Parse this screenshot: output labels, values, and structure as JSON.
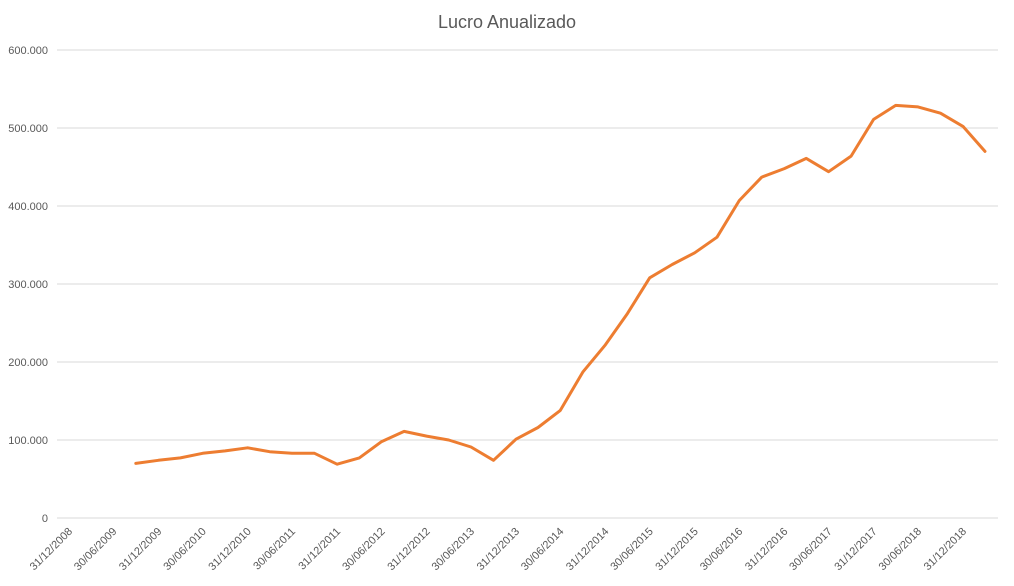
{
  "chart_data": {
    "type": "line",
    "title": "Lucro Anualizado",
    "xlabel": "",
    "ylabel": "",
    "ylim": [
      0,
      600000
    ],
    "y_ticks": [
      {
        "value": 0,
        "label": "0"
      },
      {
        "value": 100000,
        "label": "100.000"
      },
      {
        "value": 200000,
        "label": "200.000"
      },
      {
        "value": 300000,
        "label": "300.000"
      },
      {
        "value": 400000,
        "label": "400.000"
      },
      {
        "value": 500000,
        "label": "500.000"
      },
      {
        "value": 600000,
        "label": "600.000"
      }
    ],
    "x_tick_labels": [
      "31/12/2008",
      "30/06/2009",
      "31/12/2009",
      "30/06/2010",
      "31/12/2010",
      "30/06/2011",
      "31/12/2011",
      "30/06/2012",
      "31/12/2012",
      "30/06/2013",
      "31/12/2013",
      "30/06/2014",
      "31/12/2014",
      "30/06/2015",
      "31/12/2015",
      "30/06/2016",
      "31/12/2016",
      "30/06/2017",
      "31/12/2017",
      "30/06/2018",
      "31/12/2018"
    ],
    "grid": true,
    "legend": "none",
    "colors": {
      "series": "#ED7D31",
      "grid": "#d9d9d9",
      "text": "#595959"
    },
    "series": [
      {
        "x": [
          "31/12/2008",
          "31/03/2009",
          "30/06/2009",
          "30/09/2009",
          "31/12/2009",
          "31/03/2010",
          "30/06/2010",
          "30/09/2010",
          "31/12/2010",
          "31/03/2011",
          "30/06/2011",
          "30/09/2011",
          "31/12/2011",
          "31/03/2012",
          "30/06/2012",
          "30/09/2012",
          "31/12/2012",
          "31/03/2013",
          "30/06/2013",
          "30/09/2013",
          "31/12/2013",
          "31/03/2014",
          "30/06/2014",
          "30/09/2014",
          "31/12/2014",
          "31/03/2015",
          "30/06/2015",
          "30/09/2015",
          "31/12/2015",
          "31/03/2016",
          "30/06/2016",
          "30/09/2016",
          "31/12/2016",
          "31/03/2017",
          "30/06/2017",
          "30/09/2017",
          "31/12/2017",
          "31/03/2018",
          "30/06/2018",
          "30/09/2018",
          "31/12/2018",
          "31/03/2019"
        ],
        "values": [
          null,
          null,
          null,
          70000,
          74000,
          77000,
          83000,
          86000,
          90000,
          85000,
          83000,
          83000,
          69000,
          77000,
          98000,
          111000,
          105000,
          100000,
          91000,
          74000,
          101000,
          116000,
          138000,
          187000,
          222000,
          262000,
          308000,
          325000,
          340000,
          360000,
          407000,
          437000,
          448000,
          461000,
          444000,
          464000,
          511000,
          529000,
          527000,
          519000,
          502000,
          470000
        ]
      }
    ]
  }
}
